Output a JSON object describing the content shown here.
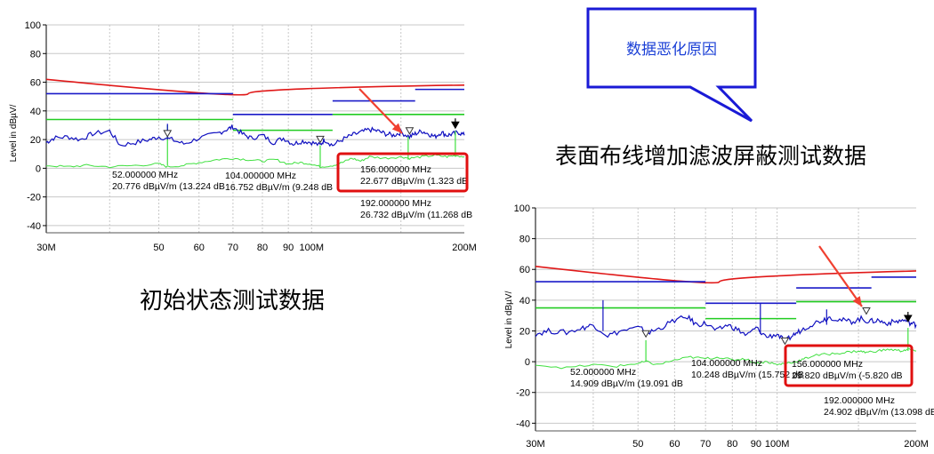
{
  "captions": {
    "initial": "初始状态测试数据",
    "improved": "表面布线增加滤波屏蔽测试数据",
    "callout": "数据恶化原因"
  },
  "colors": {
    "limit_red": "#e01818",
    "limit_blue": "#1a1ac8",
    "limit_green": "#22cc22",
    "trace_blue": "#1010c0",
    "trace_green": "#40e040",
    "highlight": "#e01010",
    "callout_border": "#1a1ad6",
    "callout_text": "#1a3fd6",
    "arrow": "#f04030",
    "grid": "#c8c8c8"
  },
  "chart_data": [
    {
      "type": "line",
      "x_scale": "log",
      "xlim": [
        30,
        200
      ],
      "ylim": [
        -45,
        100
      ],
      "ylabel": "Level in dBµV/",
      "grid": true,
      "x_ticks": [
        {
          "v": 30,
          "label": "30M"
        },
        {
          "v": 50,
          "label": "50"
        },
        {
          "v": 60,
          "label": "60"
        },
        {
          "v": 70,
          "label": "70"
        },
        {
          "v": 80,
          "label": "80"
        },
        {
          "v": 90,
          "label": "90"
        },
        {
          "v": 100,
          "label": "100M"
        },
        {
          "v": 200,
          "label": "200M"
        }
      ],
      "y_ticks": [
        100,
        80,
        60,
        40,
        20,
        0,
        -20,
        -40
      ],
      "limit_lines": [
        {
          "kind": "curve",
          "color": "red",
          "points": [
            [
              30,
              62
            ],
            [
              75,
              52
            ],
            [
              200,
              58
            ]
          ]
        },
        {
          "kind": "step",
          "color": "blue",
          "segments": [
            [
              30,
              70,
              52
            ],
            [
              70,
              110,
              37.5
            ],
            [
              110,
              160,
              47
            ],
            [
              160,
              200,
              55
            ]
          ]
        },
        {
          "kind": "step",
          "color": "green",
          "segments": [
            [
              30,
              70,
              34
            ],
            [
              70,
              110,
              26.5
            ],
            [
              110,
              200,
              37.5
            ]
          ]
        }
      ],
      "traces": [
        {
          "color": "blue",
          "points": [
            [
              30,
              18
            ],
            [
              31,
              21
            ],
            [
              33,
              22
            ],
            [
              35,
              20
            ],
            [
              37,
              24
            ],
            [
              40,
              26
            ],
            [
              42,
              16
            ],
            [
              45,
              18
            ],
            [
              48,
              20
            ],
            [
              50,
              22
            ],
            [
              53,
              20
            ],
            [
              56,
              17
            ],
            [
              60,
              21
            ],
            [
              65,
              24
            ],
            [
              68,
              27
            ],
            [
              70,
              29
            ],
            [
              73,
              24
            ],
            [
              76,
              21
            ],
            [
              80,
              23
            ],
            [
              84,
              18
            ],
            [
              88,
              21
            ],
            [
              92,
              17
            ],
            [
              96,
              19
            ],
            [
              100,
              18
            ],
            [
              104,
              16
            ],
            [
              106,
              20
            ],
            [
              110,
              16
            ],
            [
              115,
              20
            ],
            [
              120,
              23
            ],
            [
              125,
              25
            ],
            [
              130,
              27
            ],
            [
              135,
              26
            ],
            [
              140,
              24
            ],
            [
              145,
              23
            ],
            [
              150,
              25
            ],
            [
              156,
              22
            ],
            [
              160,
              24
            ],
            [
              165,
              26
            ],
            [
              170,
              24
            ],
            [
              175,
              22
            ],
            [
              180,
              25
            ],
            [
              185,
              23
            ],
            [
              190,
              24
            ],
            [
              195,
              25
            ],
            [
              200,
              23
            ]
          ]
        },
        {
          "color": "green",
          "points": [
            [
              30,
              2
            ],
            [
              33,
              1
            ],
            [
              36,
              2
            ],
            [
              40,
              1
            ],
            [
              45,
              2
            ],
            [
              50,
              3
            ],
            [
              52,
              1
            ],
            [
              56,
              2
            ],
            [
              60,
              4
            ],
            [
              65,
              6
            ],
            [
              70,
              7
            ],
            [
              75,
              6
            ],
            [
              80,
              5
            ],
            [
              85,
              6
            ],
            [
              90,
              3
            ],
            [
              95,
              4
            ],
            [
              100,
              3
            ],
            [
              104,
              1
            ],
            [
              110,
              2
            ],
            [
              115,
              4
            ],
            [
              120,
              7
            ],
            [
              125,
              5
            ],
            [
              130,
              8
            ],
            [
              140,
              7
            ],
            [
              150,
              8
            ],
            [
              156,
              7
            ],
            [
              165,
              8
            ],
            [
              175,
              9
            ],
            [
              185,
              8
            ],
            [
              192,
              9
            ],
            [
              200,
              8
            ]
          ]
        }
      ],
      "spikes": [
        {
          "color": "green",
          "x": 52,
          "y0": 2,
          "y1": 30
        },
        {
          "color": "green",
          "x": 104,
          "y0": 1,
          "y1": 16
        },
        {
          "color": "green",
          "x": 155,
          "y0": 6,
          "y1": 22
        },
        {
          "color": "green",
          "x": 192,
          "y0": 8,
          "y1": 26
        },
        {
          "color": "blue",
          "x": 52,
          "y0": 20,
          "y1": 31
        }
      ],
      "markers": [
        {
          "x": 52,
          "y": 20.776,
          "symbol": "open"
        },
        {
          "x": 104,
          "y": 16.752,
          "symbol": "open"
        },
        {
          "x": 156,
          "y": 22.677,
          "symbol": "open"
        },
        {
          "x": 192,
          "y": 26.732,
          "symbol": "filled"
        }
      ],
      "annotations": [
        {
          "freq": "52.000000 MHz",
          "level": "20.776 dBµV/m (13.224 dB"
        },
        {
          "freq": "104.000000 MHz",
          "level": "16.752 dBµV/m (9.248 dB"
        },
        {
          "freq": "156.000000 MHz",
          "level": "22.677 dBµV/m (1.323 dB",
          "highlighted": true
        },
        {
          "freq": "192.000000 MHz",
          "level": "26.732 dBµV/m (11.268 dB"
        }
      ]
    },
    {
      "type": "line",
      "x_scale": "log",
      "xlim": [
        30,
        200
      ],
      "ylim": [
        -45,
        100
      ],
      "ylabel": "Level in dBµV/",
      "grid": true,
      "x_ticks": [
        {
          "v": 30,
          "label": "30M"
        },
        {
          "v": 50,
          "label": "50"
        },
        {
          "v": 60,
          "label": "60"
        },
        {
          "v": 70,
          "label": "70"
        },
        {
          "v": 80,
          "label": "80"
        },
        {
          "v": 90,
          "label": "90"
        },
        {
          "v": 100,
          "label": "100M"
        },
        {
          "v": 200,
          "label": "200M"
        }
      ],
      "y_ticks": [
        100,
        80,
        60,
        40,
        20,
        0,
        -20,
        -40
      ],
      "limit_lines": [
        {
          "kind": "curve",
          "color": "red",
          "points": [
            [
              30,
              62
            ],
            [
              75,
              52
            ],
            [
              200,
              59
            ]
          ]
        },
        {
          "kind": "step",
          "color": "blue",
          "segments": [
            [
              30,
              70,
              52
            ],
            [
              70,
              110,
              38
            ],
            [
              110,
              160,
              48
            ],
            [
              160,
              200,
              55
            ]
          ]
        },
        {
          "kind": "step",
          "color": "green",
          "segments": [
            [
              30,
              70,
              35
            ],
            [
              70,
              110,
              28
            ],
            [
              110,
              200,
              39
            ]
          ]
        }
      ],
      "traces": [
        {
          "color": "blue",
          "points": [
            [
              30,
              18
            ],
            [
              32,
              20
            ],
            [
              35,
              19
            ],
            [
              38,
              22
            ],
            [
              40,
              24
            ],
            [
              43,
              17
            ],
            [
              46,
              20
            ],
            [
              50,
              22
            ],
            [
              53,
              19
            ],
            [
              56,
              22
            ],
            [
              60,
              27
            ],
            [
              64,
              29
            ],
            [
              67,
              24
            ],
            [
              70,
              25
            ],
            [
              74,
              20
            ],
            [
              78,
              24
            ],
            [
              82,
              21
            ],
            [
              86,
              17
            ],
            [
              90,
              22
            ],
            [
              95,
              16
            ],
            [
              100,
              18
            ],
            [
              104,
              13
            ],
            [
              108,
              17
            ],
            [
              112,
              20
            ],
            [
              118,
              24
            ],
            [
              125,
              27
            ],
            [
              130,
              29
            ],
            [
              138,
              27
            ],
            [
              145,
              26
            ],
            [
              152,
              28
            ],
            [
              158,
              26
            ],
            [
              165,
              27
            ],
            [
              172,
              25
            ],
            [
              180,
              26
            ],
            [
              188,
              27
            ],
            [
              195,
              25
            ],
            [
              200,
              24
            ]
          ]
        },
        {
          "color": "green",
          "points": [
            [
              30,
              -2
            ],
            [
              35,
              -4
            ],
            [
              40,
              -2
            ],
            [
              45,
              -3
            ],
            [
              50,
              -1
            ],
            [
              52,
              0
            ],
            [
              55,
              -2
            ],
            [
              60,
              1
            ],
            [
              65,
              3
            ],
            [
              70,
              2
            ],
            [
              75,
              3
            ],
            [
              80,
              1
            ],
            [
              85,
              2
            ],
            [
              90,
              -1
            ],
            [
              95,
              0
            ],
            [
              100,
              -2
            ],
            [
              104,
              -1
            ],
            [
              110,
              0
            ],
            [
              115,
              2
            ],
            [
              120,
              4
            ],
            [
              130,
              5
            ],
            [
              140,
              6
            ],
            [
              150,
              7
            ],
            [
              156,
              6
            ],
            [
              165,
              7
            ],
            [
              175,
              8
            ],
            [
              185,
              7
            ],
            [
              192,
              8
            ],
            [
              200,
              7
            ]
          ]
        }
      ],
      "spikes": [
        {
          "color": "blue",
          "x": 42,
          "y0": 20,
          "y1": 40
        },
        {
          "color": "blue",
          "x": 92,
          "y0": 18,
          "y1": 38
        },
        {
          "color": "blue",
          "x": 128,
          "y0": 24,
          "y1": 34
        },
        {
          "color": "green",
          "x": 52,
          "y0": 0,
          "y1": 14
        },
        {
          "color": "green",
          "x": 192,
          "y0": 7,
          "y1": 22
        }
      ],
      "markers": [
        {
          "x": 52,
          "y": 14.909,
          "symbol": "open"
        },
        {
          "x": 104,
          "y": 10.248,
          "symbol": "open"
        },
        {
          "x": 156,
          "y": 29.82,
          "symbol": "open"
        },
        {
          "x": 192,
          "y": 24.902,
          "symbol": "filled"
        }
      ],
      "annotations": [
        {
          "freq": "52.000000 MHz",
          "level": "14.909 dBµV/m (19.091 dB"
        },
        {
          "freq": "104.000000 MHz",
          "level": "10.248 dBµV/m (15.752 dB"
        },
        {
          "freq": "156.000000 MHz",
          "level": "29.820 dBµV/m (-5.820 dB",
          "highlighted": true
        },
        {
          "freq": "192.000000 MHz",
          "level": "24.902 dBµV/m (13.098 dB"
        }
      ]
    }
  ]
}
